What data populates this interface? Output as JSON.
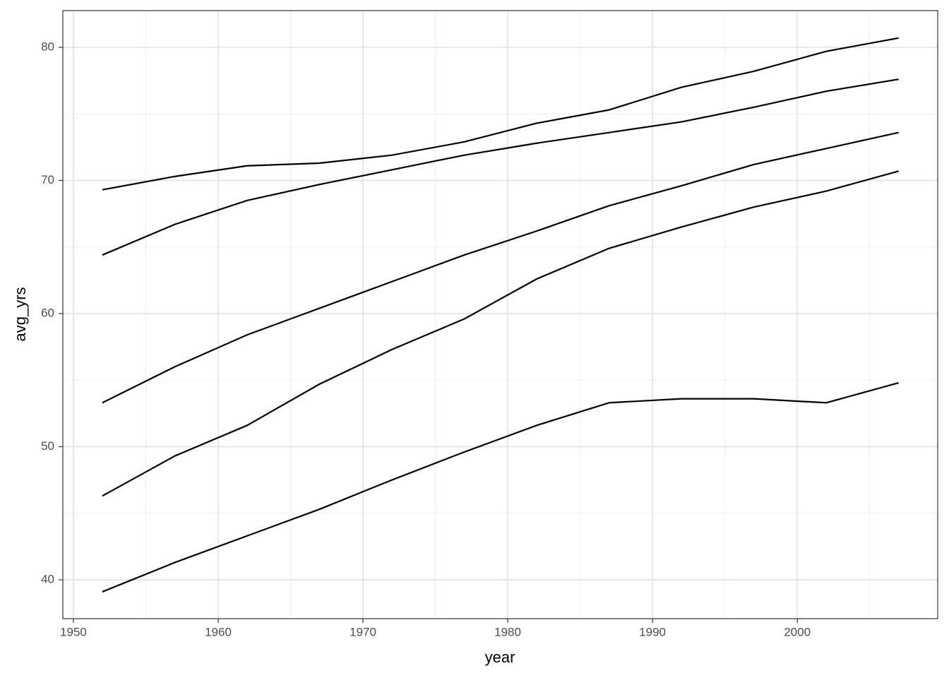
{
  "chart_data": {
    "type": "line",
    "x_label": "year",
    "y_label": "avg_yrs",
    "x": [
      1952,
      1957,
      1962,
      1967,
      1972,
      1977,
      1982,
      1987,
      1992,
      1997,
      2002,
      2007
    ],
    "series": [
      {
        "color": "#000000",
        "values": [
          39.1,
          41.3,
          43.3,
          45.3,
          47.5,
          49.6,
          51.6,
          53.3,
          53.6,
          53.6,
          53.3,
          54.8
        ]
      },
      {
        "color": "#000000",
        "values": [
          53.3,
          56.0,
          58.4,
          60.4,
          62.4,
          64.4,
          66.2,
          68.1,
          69.6,
          71.2,
          72.4,
          73.6
        ]
      },
      {
        "color": "#000000",
        "values": [
          46.3,
          49.3,
          51.6,
          54.7,
          57.3,
          59.6,
          62.6,
          64.9,
          66.5,
          68.0,
          69.2,
          70.7
        ]
      },
      {
        "color": "#000000",
        "values": [
          64.4,
          66.7,
          68.5,
          69.7,
          70.8,
          71.9,
          72.8,
          73.6,
          74.4,
          75.5,
          76.7,
          77.6
        ]
      },
      {
        "color": "#000000",
        "values": [
          69.3,
          70.3,
          71.1,
          71.3,
          71.9,
          72.9,
          74.3,
          75.3,
          77.0,
          78.2,
          79.7,
          80.7
        ]
      }
    ],
    "xlim": [
      1949.27,
      2009.7
    ],
    "xticks": [
      1950,
      1960,
      1970,
      1980,
      1990,
      2000
    ],
    "ylim": [
      37.08,
      82.76
    ],
    "yticks": [
      40,
      50,
      60,
      70,
      80
    ],
    "grid": true,
    "minor_grid": true
  }
}
